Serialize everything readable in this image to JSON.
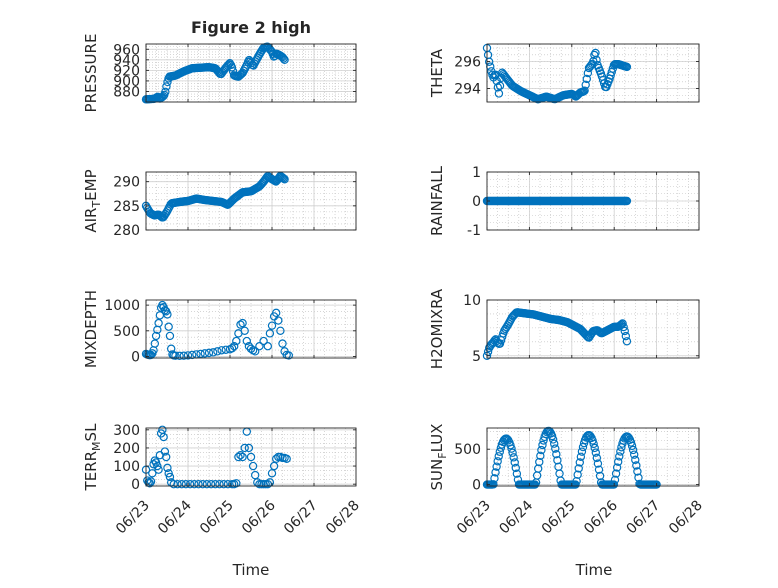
{
  "figure_title": "Figure 2 high",
  "colors": {
    "marker": "#0072BD",
    "axis": "#262626",
    "grid": "#bdbdbd",
    "background": "#ffffff"
  },
  "time_axis": {
    "xlim": [
      0,
      5
    ],
    "ticks": [
      0,
      1,
      2,
      3,
      4,
      5
    ],
    "tick_labels": [
      "06/23",
      "06/24",
      "06/25",
      "06/26",
      "06/27",
      "06/28"
    ],
    "xlabel": "Time"
  },
  "chart_data": [
    {
      "id": "pressure",
      "type": "scatter",
      "title": "Figure 2 high",
      "ylabel_parts": [
        {
          "t": "PRESSURE"
        }
      ],
      "ylim": [
        860,
        970
      ],
      "yticks": [
        880,
        900,
        920,
        940,
        960
      ],
      "ytick_labels": [
        "880",
        "900",
        "920",
        "940",
        "960"
      ],
      "grid": true,
      "anchors": [
        [
          0.0,
          865
        ],
        [
          0.2,
          866
        ],
        [
          0.28,
          870
        ],
        [
          0.32,
          866
        ],
        [
          0.4,
          870
        ],
        [
          0.45,
          875
        ],
        [
          0.5,
          895
        ],
        [
          0.55,
          908
        ],
        [
          0.7,
          910
        ],
        [
          0.9,
          918
        ],
        [
          1.1,
          924
        ],
        [
          1.3,
          925
        ],
        [
          1.5,
          926
        ],
        [
          1.65,
          924
        ],
        [
          1.78,
          912
        ],
        [
          1.9,
          925
        ],
        [
          2.0,
          934
        ],
        [
          2.05,
          925
        ],
        [
          2.1,
          910
        ],
        [
          2.2,
          908
        ],
        [
          2.3,
          915
        ],
        [
          2.4,
          930
        ],
        [
          2.45,
          940
        ],
        [
          2.5,
          935
        ],
        [
          2.55,
          928
        ],
        [
          2.7,
          950
        ],
        [
          2.8,
          963
        ],
        [
          2.9,
          965
        ],
        [
          3.0,
          955
        ],
        [
          3.05,
          945
        ],
        [
          3.1,
          952
        ],
        [
          3.2,
          948
        ],
        [
          3.25,
          945
        ],
        [
          3.3,
          940
        ]
      ],
      "point_count": 130,
      "x_range": [
        0.0,
        3.3
      ]
    },
    {
      "id": "theta",
      "type": "scatter",
      "ylabel_parts": [
        {
          "t": "THETA"
        }
      ],
      "ylim": [
        293.0,
        297.3
      ],
      "yticks": [
        294,
        296
      ],
      "ytick_labels": [
        "294",
        "296"
      ],
      "grid": true,
      "anchors": [
        [
          0.0,
          297.0
        ],
        [
          0.05,
          296.0
        ],
        [
          0.1,
          295.3
        ],
        [
          0.15,
          294.8
        ],
        [
          0.2,
          295.1
        ],
        [
          0.25,
          294.2
        ],
        [
          0.28,
          293.6
        ],
        [
          0.32,
          294.5
        ],
        [
          0.35,
          295.2
        ],
        [
          0.4,
          295.0
        ],
        [
          0.5,
          294.6
        ],
        [
          0.6,
          294.2
        ],
        [
          0.8,
          293.8
        ],
        [
          1.0,
          293.5
        ],
        [
          1.2,
          293.2
        ],
        [
          1.4,
          293.4
        ],
        [
          1.6,
          293.2
        ],
        [
          1.8,
          293.5
        ],
        [
          2.0,
          293.6
        ],
        [
          2.1,
          293.4
        ],
        [
          2.2,
          293.7
        ],
        [
          2.3,
          293.8
        ],
        [
          2.4,
          295.5
        ],
        [
          2.5,
          295.9
        ],
        [
          2.55,
          296.8
        ],
        [
          2.6,
          295.8
        ],
        [
          2.7,
          295.0
        ],
        [
          2.8,
          294.0
        ],
        [
          2.9,
          294.8
        ],
        [
          3.0,
          295.8
        ],
        [
          3.1,
          295.8
        ],
        [
          3.2,
          295.7
        ],
        [
          3.3,
          295.6
        ]
      ],
      "point_count": 130,
      "x_range": [
        0.0,
        3.3
      ]
    },
    {
      "id": "air_temp",
      "type": "scatter",
      "ylabel_parts": [
        {
          "t": "AIR"
        },
        {
          "t": "T",
          "sub": true
        },
        {
          "t": "EMP"
        }
      ],
      "ylim": [
        280,
        292
      ],
      "yticks": [
        280,
        285,
        290
      ],
      "ytick_labels": [
        "280",
        "285",
        "290"
      ],
      "grid": true,
      "anchors": [
        [
          0.0,
          285.0
        ],
        [
          0.1,
          283.5
        ],
        [
          0.2,
          283.0
        ],
        [
          0.3,
          283.2
        ],
        [
          0.4,
          282.5
        ],
        [
          0.5,
          283.8
        ],
        [
          0.6,
          285.5
        ],
        [
          0.8,
          285.8
        ],
        [
          1.0,
          286.0
        ],
        [
          1.2,
          286.5
        ],
        [
          1.4,
          286.2
        ],
        [
          1.6,
          286.0
        ],
        [
          1.8,
          285.8
        ],
        [
          1.95,
          285.2
        ],
        [
          2.1,
          286.5
        ],
        [
          2.3,
          287.8
        ],
        [
          2.5,
          288.0
        ],
        [
          2.7,
          289.0
        ],
        [
          2.8,
          290.0
        ],
        [
          2.9,
          291.2
        ],
        [
          3.0,
          290.5
        ],
        [
          3.1,
          290.0
        ],
        [
          3.2,
          291.2
        ],
        [
          3.3,
          290.5
        ]
      ],
      "point_count": 130,
      "x_range": [
        0.0,
        3.3
      ]
    },
    {
      "id": "rainfall",
      "type": "scatter",
      "ylabel_parts": [
        {
          "t": "RAINFALL"
        }
      ],
      "ylim": [
        -1,
        1
      ],
      "yticks": [
        -1,
        0,
        1
      ],
      "ytick_labels": [
        "-1",
        "0",
        "1"
      ],
      "grid": true,
      "anchors": [
        [
          0.0,
          0
        ],
        [
          3.3,
          0
        ]
      ],
      "point_count": 130,
      "x_range": [
        0.0,
        3.3
      ]
    },
    {
      "id": "mixdepth",
      "type": "scatter",
      "ylabel_parts": [
        {
          "t": "MIXDEPTH"
        }
      ],
      "ylim": [
        -30,
        1100
      ],
      "yticks": [
        0,
        500,
        1000
      ],
      "ytick_labels": [
        "0",
        "500",
        "1000"
      ],
      "grid": true,
      "points": [
        [
          0.0,
          50
        ],
        [
          0.03,
          40
        ],
        [
          0.06,
          30
        ],
        [
          0.09,
          25
        ],
        [
          0.12,
          30
        ],
        [
          0.15,
          60
        ],
        [
          0.18,
          120
        ],
        [
          0.21,
          250
        ],
        [
          0.24,
          400
        ],
        [
          0.27,
          520
        ],
        [
          0.3,
          650
        ],
        [
          0.33,
          800
        ],
        [
          0.36,
          950
        ],
        [
          0.39,
          1000
        ],
        [
          0.42,
          960
        ],
        [
          0.45,
          900
        ],
        [
          0.48,
          880
        ],
        [
          0.51,
          820
        ],
        [
          0.54,
          580
        ],
        [
          0.57,
          400
        ],
        [
          0.6,
          150
        ],
        [
          0.63,
          40
        ],
        [
          0.66,
          20
        ],
        [
          0.7,
          15
        ],
        [
          0.8,
          12
        ],
        [
          0.9,
          15
        ],
        [
          1.0,
          20
        ],
        [
          1.1,
          30
        ],
        [
          1.2,
          40
        ],
        [
          1.3,
          50
        ],
        [
          1.4,
          60
        ],
        [
          1.5,
          70
        ],
        [
          1.6,
          80
        ],
        [
          1.7,
          100
        ],
        [
          1.8,
          120
        ],
        [
          1.9,
          130
        ],
        [
          2.0,
          140
        ],
        [
          2.05,
          160
        ],
        [
          2.1,
          200
        ],
        [
          2.15,
          300
        ],
        [
          2.2,
          450
        ],
        [
          2.25,
          620
        ],
        [
          2.3,
          650
        ],
        [
          2.35,
          500
        ],
        [
          2.4,
          300
        ],
        [
          2.45,
          200
        ],
        [
          2.5,
          150
        ],
        [
          2.55,
          120
        ],
        [
          2.6,
          100
        ],
        [
          2.7,
          200
        ],
        [
          2.8,
          300
        ],
        [
          2.9,
          200
        ],
        [
          2.95,
          450
        ],
        [
          3.0,
          600
        ],
        [
          3.05,
          780
        ],
        [
          3.1,
          850
        ],
        [
          3.15,
          700
        ],
        [
          3.2,
          500
        ],
        [
          3.25,
          250
        ],
        [
          3.3,
          100
        ],
        [
          3.35,
          30
        ],
        [
          3.4,
          20
        ]
      ],
      "x_range": [
        0.0,
        3.4
      ]
    },
    {
      "id": "h2omixra",
      "type": "scatter",
      "ylabel_parts": [
        {
          "t": "H2OMIXRA"
        }
      ],
      "ylim": [
        4.8,
        10.0
      ],
      "yticks": [
        5,
        10
      ],
      "ytick_labels": [
        "5",
        "10"
      ],
      "grid": true,
      "anchors": [
        [
          0.0,
          5.0
        ],
        [
          0.05,
          5.7
        ],
        [
          0.1,
          6.0
        ],
        [
          0.15,
          6.2
        ],
        [
          0.2,
          6.5
        ],
        [
          0.25,
          6.2
        ],
        [
          0.3,
          6.0
        ],
        [
          0.4,
          7.2
        ],
        [
          0.5,
          7.8
        ],
        [
          0.6,
          8.5
        ],
        [
          0.7,
          8.9
        ],
        [
          0.9,
          8.8
        ],
        [
          1.1,
          8.7
        ],
        [
          1.3,
          8.5
        ],
        [
          1.5,
          8.3
        ],
        [
          1.7,
          8.2
        ],
        [
          1.9,
          8.0
        ],
        [
          2.0,
          7.8
        ],
        [
          2.1,
          7.6
        ],
        [
          2.2,
          7.4
        ],
        [
          2.3,
          7.0
        ],
        [
          2.4,
          6.6
        ],
        [
          2.5,
          7.2
        ],
        [
          2.6,
          7.3
        ],
        [
          2.7,
          7.0
        ],
        [
          2.8,
          7.2
        ],
        [
          2.9,
          7.4
        ],
        [
          3.0,
          7.6
        ],
        [
          3.1,
          7.6
        ],
        [
          3.2,
          7.9
        ],
        [
          3.25,
          7.2
        ],
        [
          3.3,
          6.3
        ]
      ],
      "point_count": 130,
      "x_range": [
        0.0,
        3.3
      ]
    },
    {
      "id": "terr_msl",
      "type": "scatter",
      "ylabel_parts": [
        {
          "t": "TERR"
        },
        {
          "t": "M",
          "sub": true
        },
        {
          "t": "SL"
        }
      ],
      "ylim": [
        -10,
        310
      ],
      "yticks": [
        0,
        100,
        200,
        300
      ],
      "ytick_labels": [
        "0",
        "100",
        "200",
        "300"
      ],
      "grid": true,
      "points": [
        [
          0.0,
          80
        ],
        [
          0.03,
          20
        ],
        [
          0.06,
          10
        ],
        [
          0.09,
          5
        ],
        [
          0.12,
          15
        ],
        [
          0.15,
          60
        ],
        [
          0.18,
          110
        ],
        [
          0.21,
          130
        ],
        [
          0.24,
          120
        ],
        [
          0.27,
          100
        ],
        [
          0.3,
          80
        ],
        [
          0.33,
          160
        ],
        [
          0.36,
          280
        ],
        [
          0.39,
          300
        ],
        [
          0.42,
          260
        ],
        [
          0.45,
          180
        ],
        [
          0.48,
          150
        ],
        [
          0.51,
          90
        ],
        [
          0.54,
          60
        ],
        [
          0.57,
          40
        ],
        [
          0.6,
          10
        ],
        [
          0.66,
          0
        ],
        [
          0.75,
          0
        ],
        [
          0.85,
          0
        ],
        [
          0.95,
          0
        ],
        [
          1.05,
          0
        ],
        [
          1.15,
          0
        ],
        [
          1.25,
          0
        ],
        [
          1.35,
          0
        ],
        [
          1.45,
          0
        ],
        [
          1.55,
          0
        ],
        [
          1.65,
          0
        ],
        [
          1.75,
          0
        ],
        [
          1.85,
          0
        ],
        [
          1.95,
          0
        ],
        [
          2.05,
          0
        ],
        [
          2.1,
          0
        ],
        [
          2.15,
          5
        ],
        [
          2.2,
          150
        ],
        [
          2.25,
          160
        ],
        [
          2.3,
          150
        ],
        [
          2.35,
          200
        ],
        [
          2.4,
          290
        ],
        [
          2.45,
          200
        ],
        [
          2.5,
          150
        ],
        [
          2.55,
          100
        ],
        [
          2.6,
          50
        ],
        [
          2.65,
          10
        ],
        [
          2.7,
          0
        ],
        [
          2.75,
          0
        ],
        [
          2.8,
          0
        ],
        [
          2.85,
          0
        ],
        [
          2.9,
          0
        ],
        [
          2.95,
          10
        ],
        [
          3.0,
          60
        ],
        [
          3.05,
          100
        ],
        [
          3.1,
          140
        ],
        [
          3.15,
          150
        ],
        [
          3.2,
          150
        ],
        [
          3.25,
          145
        ],
        [
          3.3,
          145
        ],
        [
          3.35,
          140
        ]
      ],
      "x_range": [
        0.0,
        3.35
      ]
    },
    {
      "id": "sun_flux",
      "type": "scatter",
      "ylabel_parts": [
        {
          "t": "SUN"
        },
        {
          "t": "F",
          "sub": true
        },
        {
          "t": "LUX"
        }
      ],
      "ylim": [
        -20,
        800
      ],
      "yticks": [
        0,
        500
      ],
      "ytick_labels": [
        "0",
        "500"
      ],
      "grid": true,
      "diurnal_peaks": [
        [
          0.45,
          650
        ],
        [
          1.45,
          760
        ],
        [
          2.4,
          700
        ],
        [
          3.3,
          680
        ]
      ],
      "x_range": [
        0.0,
        4.0
      ]
    }
  ]
}
